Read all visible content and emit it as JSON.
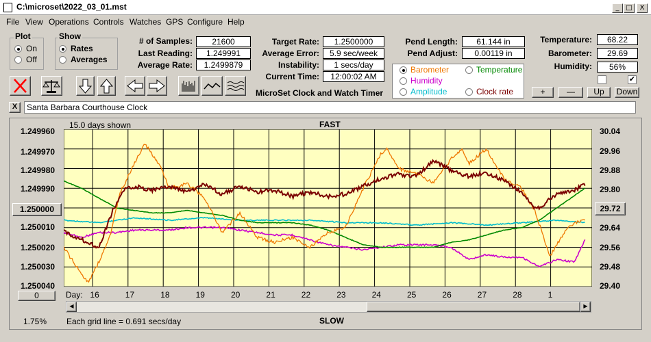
{
  "window": {
    "title": "C:\\microset\\2022_03_01.mst",
    "min": "_",
    "max": "□",
    "close": "X"
  },
  "menu": [
    "File",
    "View",
    "Operations",
    "Controls",
    "Watches",
    "GPS",
    "Configure",
    "Help"
  ],
  "plot_group": {
    "title": "Plot",
    "on": "On",
    "off": "Off",
    "selected": "On"
  },
  "show_group": {
    "title": "Show",
    "rates": "Rates",
    "averages": "Averages",
    "selected": "Rates"
  },
  "stats": {
    "samples_label": "# of Samples:",
    "samples": "21600",
    "last_label": "Last Reading:",
    "last": "1.249991",
    "avg_label": "Average Rate:",
    "avg": "1.2499879"
  },
  "rates": {
    "target_label": "Target Rate:",
    "target": "1.2500000",
    "err_label": "Average Error:",
    "err": "5.9 sec/week",
    "inst_label": "Instability:",
    "inst": "1 secs/day",
    "time_label": "Current Time:",
    "time": "12:00:02 AM"
  },
  "pend": {
    "len_label": "Pend Length:",
    "len": "61.144 in",
    "adj_label": "Pend Adjust:",
    "adj": "0.00119 in"
  },
  "env": {
    "temp_label": "Temperature:",
    "temp": "68.22",
    "baro_label": "Barometer:",
    "baro": "29.69",
    "hum_label": "Humidity:",
    "hum": "56%"
  },
  "series_select": {
    "barometer": "Barometer",
    "temperature": "Temperature",
    "humidity": "Humidity",
    "amplitude": "Amplitude",
    "clock_rate": "Clock rate",
    "selected": "Barometer",
    "colors": {
      "barometer": "#ee7700",
      "temperature": "#008800",
      "humidity": "#cc00cc",
      "amplitude": "#00bbcc",
      "clock_rate": "#7a0000"
    }
  },
  "adjust_buttons": {
    "plus": "+",
    "minus": "—",
    "up": "Up",
    "down": "Down"
  },
  "app_title": "MicroSet Clock and Watch Timer",
  "clock_name": "Santa Barbara Courthouse Clock",
  "close_x": "X",
  "checkbox_right": "✔",
  "chart_data": {
    "type": "line",
    "top_label": "FAST",
    "bottom_label": "SLOW",
    "span_label": "15.0 days shown",
    "grid_note": "Each grid line = 0.691 secs/day",
    "xlabel": "Day:",
    "x_ticks": [
      "16",
      "17",
      "18",
      "19",
      "20",
      "21",
      "22",
      "23",
      "24",
      "25",
      "26",
      "27",
      "28",
      "1"
    ],
    "xlim_days": [
      0,
      15
    ],
    "x_tick_days": [
      1,
      2,
      3,
      4,
      5,
      6,
      7,
      8,
      9,
      10,
      11,
      12,
      13,
      14
    ],
    "y_left_ticks": [
      "1.249960",
      "1.249970",
      "1.249980",
      "1.249990",
      "1.250000",
      "1.250010",
      "1.250020",
      "1.250030",
      "1.250040"
    ],
    "y_left_range": [
      1.24996,
      1.25004
    ],
    "y_left_inverted": true,
    "y_left_center_button": "1.250000",
    "y_right_ticks": [
      "30.04",
      "29.96",
      "29.88",
      "29.80",
      "29.72",
      "29.64",
      "29.56",
      "29.48",
      "29.40"
    ],
    "y_right_range": [
      29.4,
      30.04
    ],
    "y_right_current_button": "29.72",
    "grid": true,
    "zero_button": "0",
    "pct_label": "1.75%",
    "series": [
      {
        "name": "Clock rate",
        "color": "#7a0000",
        "axis": "left",
        "x": [
          0,
          0.5,
          1,
          1.4,
          1.7,
          2,
          2.5,
          3,
          3.5,
          4,
          4.5,
          5,
          5.5,
          6,
          6.5,
          7,
          7.5,
          8,
          8.5,
          9,
          9.5,
          10,
          10.5,
          11,
          11.5,
          12,
          12.5,
          13,
          13.4,
          14,
          14.5,
          14.8
        ],
        "y": [
          1.250012,
          1.250016,
          1.25002,
          1.250001,
          1.249991,
          1.249989,
          1.249991,
          1.249989,
          1.249992,
          1.249988,
          1.249993,
          1.249989,
          1.249992,
          1.249991,
          1.249994,
          1.249992,
          1.249994,
          1.249993,
          1.249989,
          1.249985,
          1.249983,
          1.249984,
          1.249976,
          1.249981,
          1.249984,
          1.249982,
          1.249986,
          1.249992,
          1.250001,
          1.249993,
          1.249991,
          1.249988
        ]
      },
      {
        "name": "Barometer",
        "color": "#ee7700",
        "axis": "right",
        "x": [
          0,
          0.5,
          0.7,
          1,
          1.3,
          1.6,
          2,
          2.3,
          2.7,
          3,
          3.5,
          4,
          4.5,
          5,
          5.5,
          6,
          6.5,
          7,
          7.5,
          8,
          8.5,
          9,
          9.2,
          9.5,
          10,
          10.5,
          11,
          11.3,
          11.5,
          12,
          12.5,
          13,
          13.4,
          13.8,
          14.2,
          14.5,
          14.8
        ],
        "y": [
          29.56,
          29.45,
          29.42,
          29.5,
          29.6,
          29.78,
          29.9,
          29.98,
          29.9,
          29.8,
          29.82,
          29.76,
          29.62,
          29.7,
          29.6,
          29.58,
          29.6,
          29.56,
          29.62,
          29.64,
          29.8,
          29.94,
          29.96,
          29.88,
          29.86,
          29.82,
          29.92,
          29.96,
          29.9,
          29.96,
          29.84,
          29.8,
          29.7,
          29.52,
          29.62,
          29.66,
          29.67
        ]
      },
      {
        "name": "Temperature",
        "color": "#008800",
        "axis": "right",
        "x": [
          0,
          0.5,
          1,
          1.5,
          2,
          2.5,
          3,
          3.5,
          4,
          4.5,
          5,
          5.5,
          6,
          6.5,
          7,
          7.5,
          8,
          8.5,
          9,
          9.5,
          10,
          10.5,
          11,
          11.5,
          12,
          12.5,
          13,
          13.5,
          14,
          14.8
        ],
        "y": [
          29.83,
          29.8,
          29.76,
          29.72,
          29.71,
          29.7,
          29.7,
          29.71,
          29.7,
          29.69,
          29.67,
          29.66,
          29.66,
          29.66,
          29.65,
          29.63,
          29.6,
          29.57,
          29.56,
          29.56,
          29.56,
          29.56,
          29.58,
          29.59,
          29.61,
          29.63,
          29.64,
          29.67,
          29.72,
          29.8
        ]
      },
      {
        "name": "Amplitude",
        "color": "#00bbcc",
        "axis": "right",
        "x": [
          0,
          1,
          2,
          3,
          4,
          5,
          6,
          7,
          8,
          9,
          10,
          11,
          12,
          13,
          14,
          14.8
        ],
        "y": [
          29.67,
          29.66,
          29.68,
          29.67,
          29.68,
          29.67,
          29.67,
          29.67,
          29.66,
          29.66,
          29.65,
          29.66,
          29.65,
          29.66,
          29.67,
          29.66
        ]
      },
      {
        "name": "Humidity",
        "color": "#cc00cc",
        "axis": "right",
        "x": [
          0,
          0.5,
          1,
          1.5,
          2,
          2.5,
          3,
          3.5,
          4,
          4.5,
          5,
          5.5,
          6,
          6.5,
          7,
          7.5,
          8,
          8.5,
          9,
          9.5,
          10,
          10.5,
          11,
          11.5,
          12,
          12.5,
          13,
          13.5,
          14,
          14.5,
          14.8
        ],
        "y": [
          29.62,
          29.6,
          29.62,
          29.62,
          29.63,
          29.63,
          29.63,
          29.64,
          29.64,
          29.64,
          29.63,
          29.62,
          29.61,
          29.61,
          29.59,
          29.57,
          29.56,
          29.55,
          29.56,
          29.57,
          29.57,
          29.57,
          29.56,
          29.51,
          29.53,
          29.52,
          29.52,
          29.48,
          29.51,
          29.5,
          29.59
        ]
      }
    ]
  }
}
